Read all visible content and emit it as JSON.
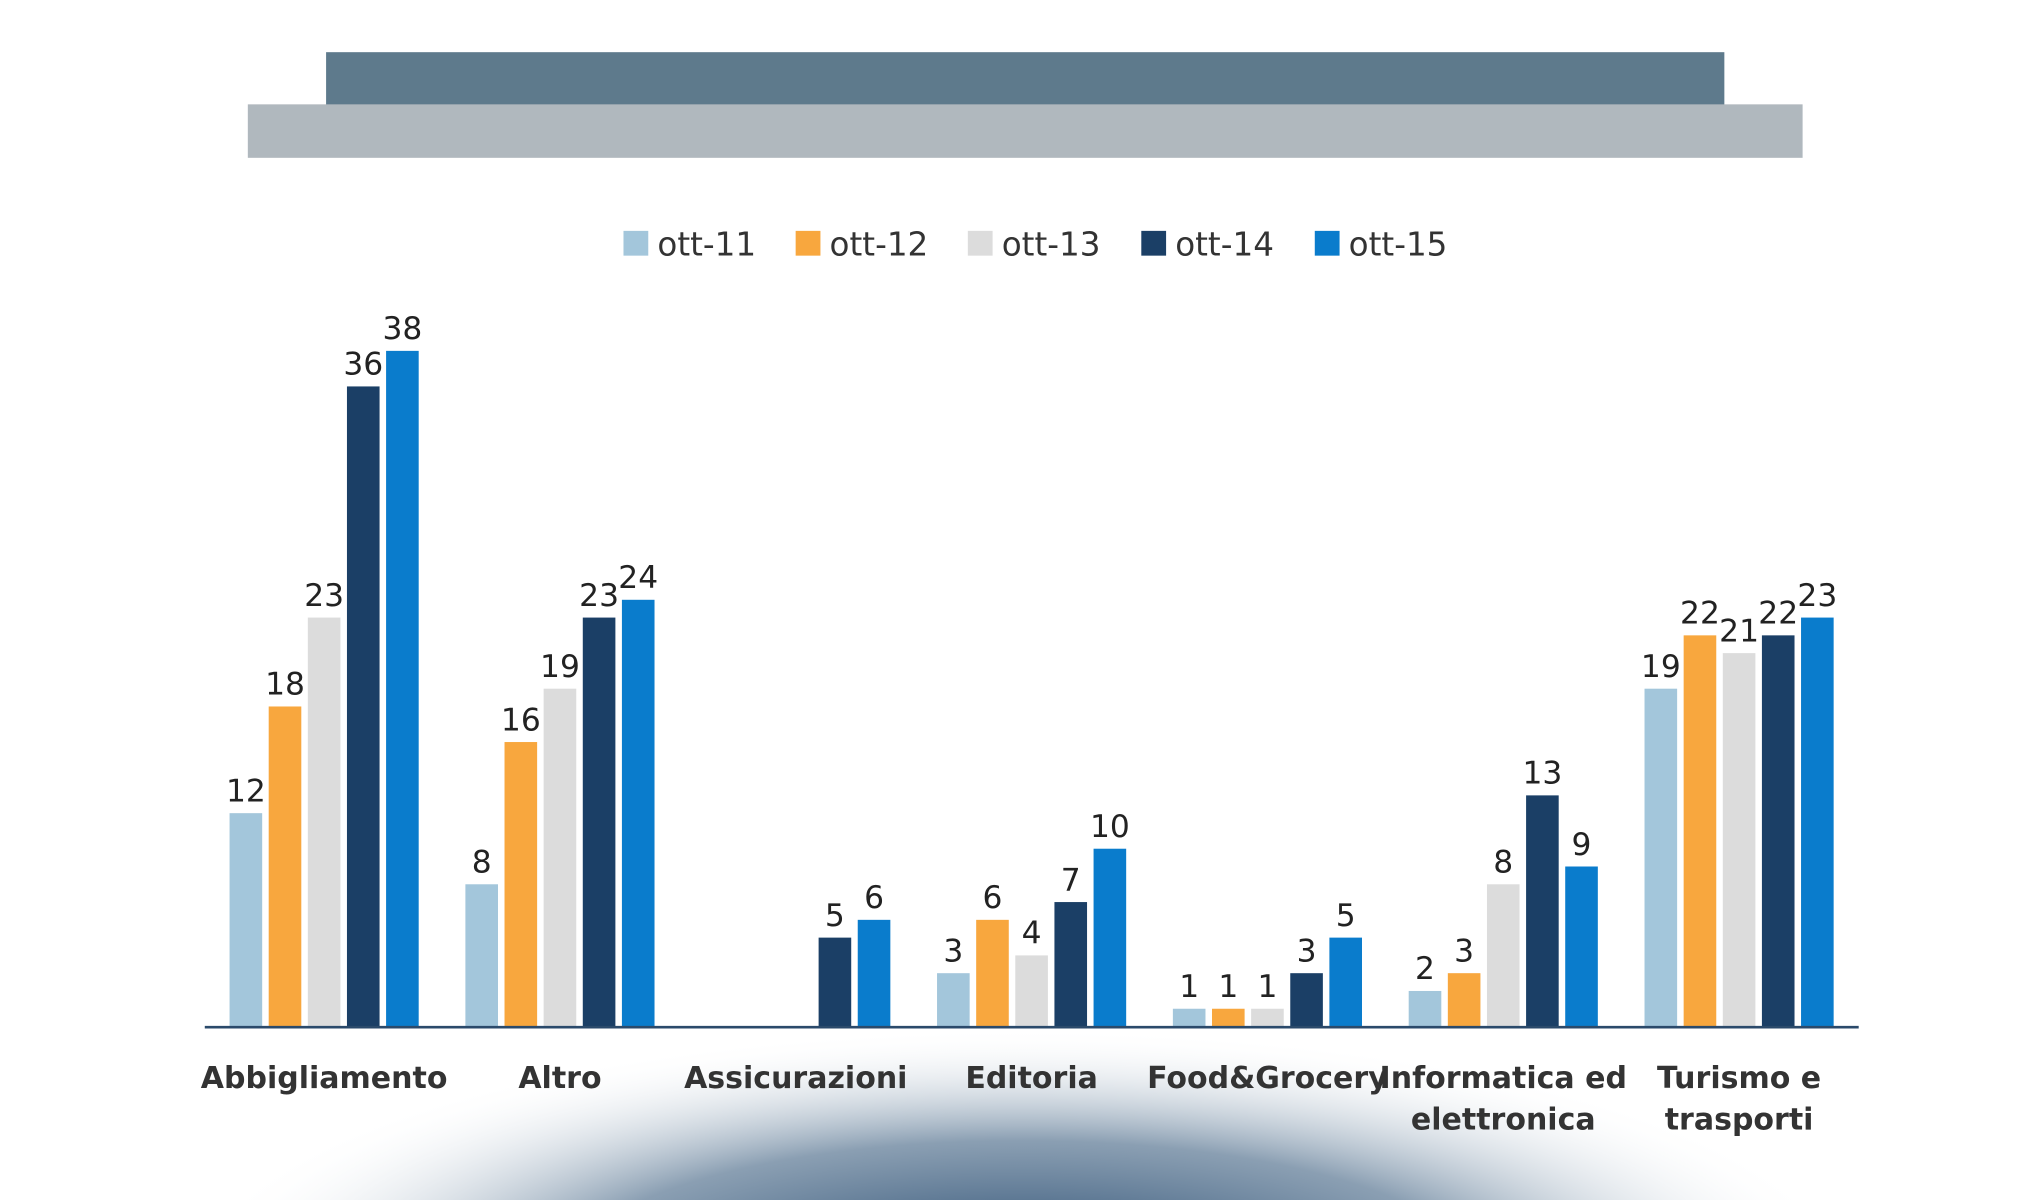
{
  "chart_data": {
    "type": "bar",
    "title": "",
    "xlabel": "",
    "ylabel": "",
    "ylim": [
      0,
      38
    ],
    "grid": false,
    "legend_position": "top-center",
    "data_labels": true,
    "categories": [
      "Abbigliamento",
      "Altro",
      "Assicurazioni",
      "Editoria",
      "Food&Grocery",
      "Informatica ed elettronica",
      "Turismo e trasporti"
    ],
    "category_lines": [
      [
        "Abbigliamento"
      ],
      [
        "Altro"
      ],
      [
        "Assicurazioni"
      ],
      [
        "Editoria"
      ],
      [
        "Food&Grocery"
      ],
      [
        "Informatica ed",
        "elettronica"
      ],
      [
        "Turismo e",
        "trasporti"
      ]
    ],
    "series": [
      {
        "name": "ott-11",
        "color": "#a3c6db",
        "values": [
          12,
          8,
          null,
          3,
          1,
          2,
          19
        ]
      },
      {
        "name": "ott-12",
        "color": "#f8a73e",
        "values": [
          18,
          16,
          null,
          6,
          1,
          3,
          22
        ]
      },
      {
        "name": "ott-13",
        "color": "#dcdcdc",
        "values": [
          23,
          19,
          null,
          4,
          1,
          8,
          21
        ]
      },
      {
        "name": "ott-14",
        "color": "#1b3f66",
        "values": [
          36,
          23,
          5,
          7,
          3,
          13,
          22
        ]
      },
      {
        "name": "ott-15",
        "color": "#0a7ccc",
        "values": [
          38,
          24,
          6,
          10,
          5,
          9,
          23
        ]
      }
    ]
  },
  "colors": {
    "header_dark": "#5e7a8c",
    "header_light": "#b0b8be",
    "axis": "#2b4a6b",
    "glow": "#1b3f66"
  }
}
